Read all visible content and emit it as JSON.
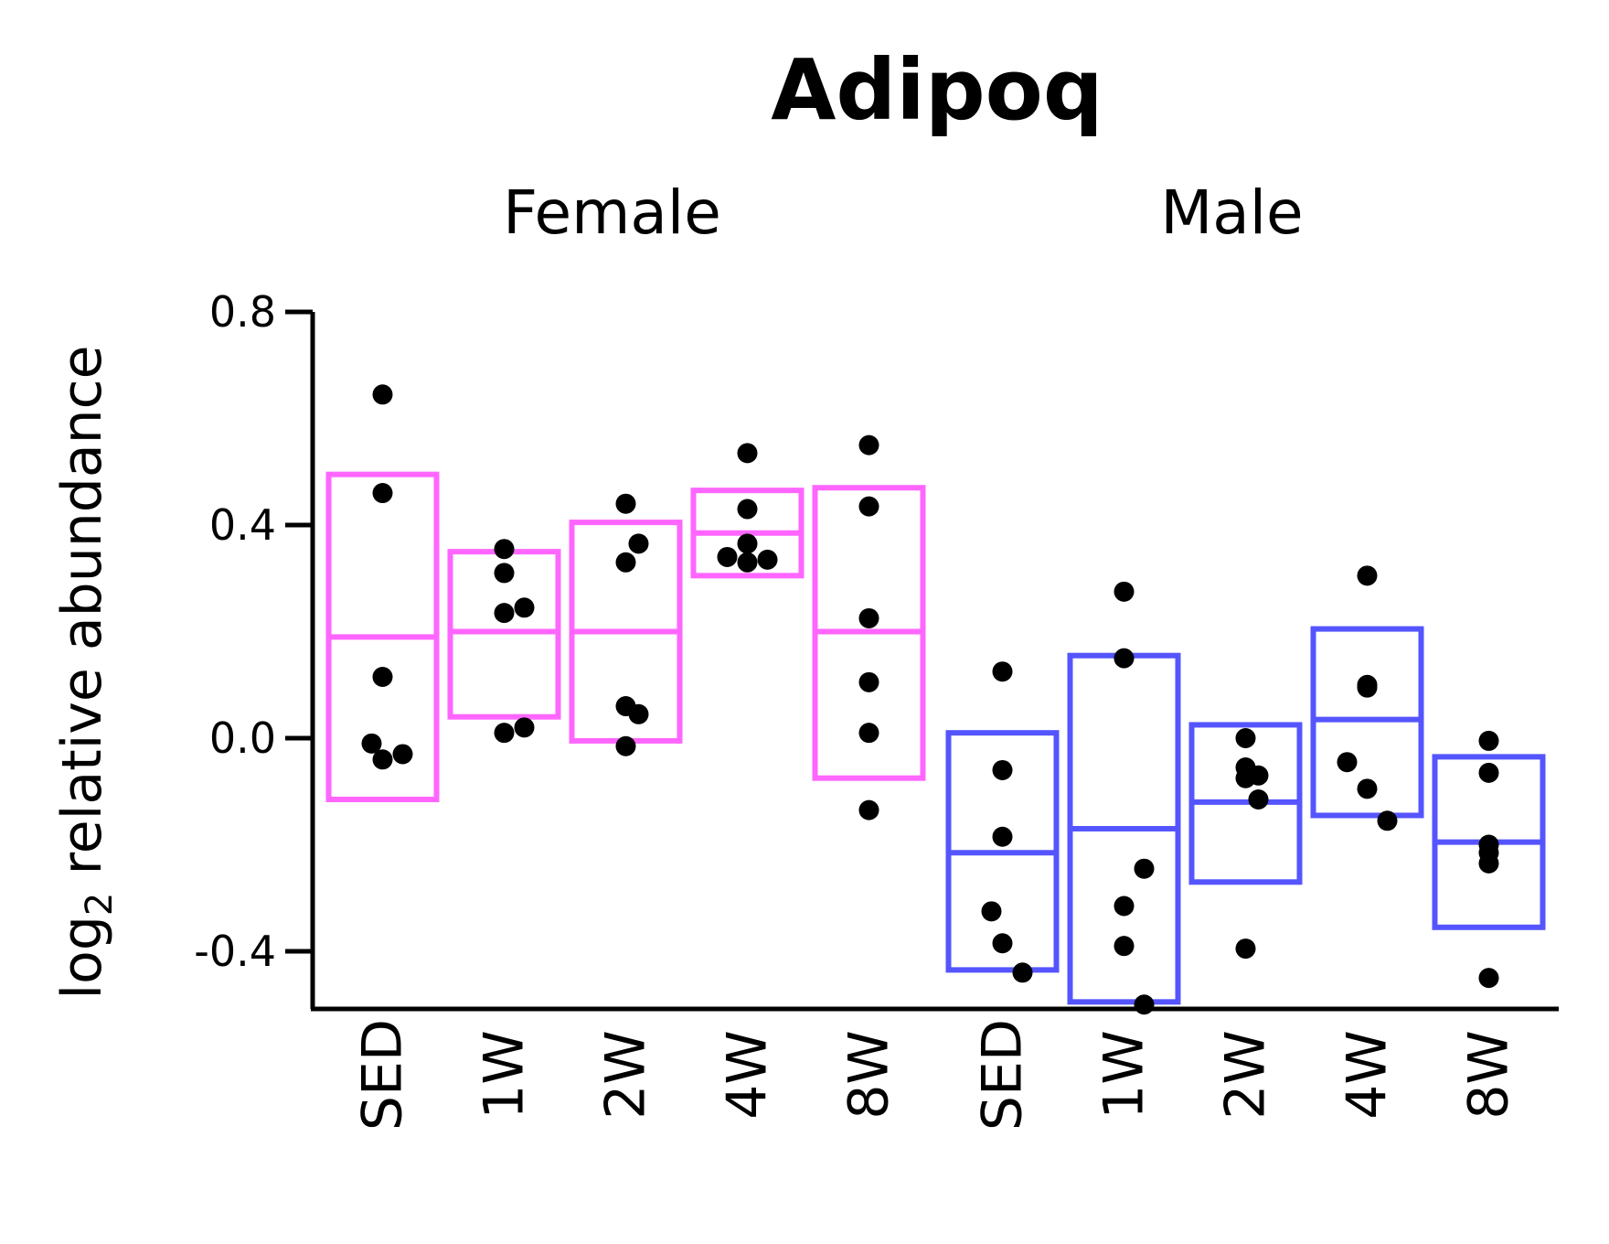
{
  "chart_data": {
    "type": "box",
    "title": "Adipoq",
    "ylabel": "log2 relative abundance",
    "ylabel_main": "log",
    "ylabel_sub": "2",
    "ylabel_rest": " relative abundance",
    "ylim": [
      -0.5,
      0.8
    ],
    "yticks": [
      0.8,
      0.4,
      0.0,
      -0.4
    ],
    "ytick_labels": [
      "0.8",
      "0.4",
      "0.0",
      "-0.4"
    ],
    "panels": [
      {
        "name": "Female",
        "color": "#ff66ff",
        "categories": [
          "SED",
          "1W",
          "2W",
          "4W",
          "8W"
        ],
        "boxes": [
          {
            "mean": 0.19,
            "low": -0.115,
            "high": 0.495,
            "points": [
              0.645,
              0.46,
              0.115,
              -0.01,
              -0.04,
              -0.03
            ]
          },
          {
            "mean": 0.2,
            "low": 0.04,
            "high": 0.35,
            "points": [
              0.355,
              0.31,
              0.245,
              0.235,
              0.01,
              0.02
            ]
          },
          {
            "mean": 0.2,
            "low": -0.005,
            "high": 0.405,
            "points": [
              0.44,
              0.365,
              0.33,
              0.06,
              0.045,
              -0.015
            ]
          },
          {
            "mean": 0.385,
            "low": 0.305,
            "high": 0.465,
            "points": [
              0.535,
              0.43,
              0.365,
              0.34,
              0.33,
              0.335
            ]
          },
          {
            "mean": 0.2,
            "low": -0.075,
            "high": 0.47,
            "points": [
              0.55,
              0.435,
              0.225,
              0.105,
              0.01,
              -0.135
            ]
          }
        ]
      },
      {
        "name": "Male",
        "color": "#5555ff",
        "categories": [
          "SED",
          "1W",
          "2W",
          "4W",
          "8W"
        ],
        "boxes": [
          {
            "mean": -0.215,
            "low": -0.435,
            "high": 0.01,
            "points": [
              0.125,
              -0.06,
              -0.185,
              -0.325,
              -0.385,
              -0.44
            ]
          },
          {
            "mean": -0.17,
            "low": -0.495,
            "high": 0.155,
            "points": [
              0.275,
              0.15,
              -0.245,
              -0.315,
              -0.39,
              -0.5
            ]
          },
          {
            "mean": -0.12,
            "low": -0.27,
            "high": 0.025,
            "points": [
              0.0,
              -0.07,
              -0.075,
              -0.055,
              -0.115,
              -0.395
            ]
          },
          {
            "mean": 0.035,
            "low": -0.145,
            "high": 0.205,
            "points": [
              0.305,
              0.095,
              0.1,
              -0.045,
              -0.095,
              -0.155
            ]
          },
          {
            "mean": -0.195,
            "low": -0.355,
            "high": -0.035,
            "points": [
              -0.005,
              -0.065,
              -0.2,
              -0.215,
              -0.235,
              -0.45
            ]
          }
        ]
      }
    ]
  }
}
